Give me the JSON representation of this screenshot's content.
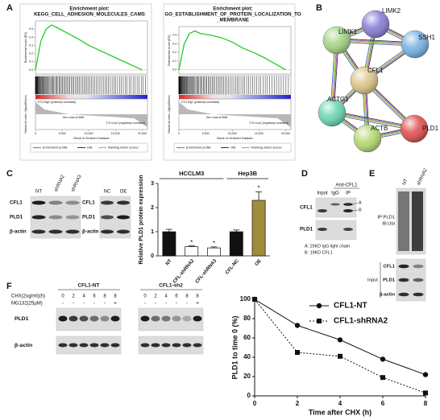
{
  "panel_labels": [
    "A",
    "B",
    "C",
    "D",
    "E",
    "F"
  ],
  "chart_data": [
    {
      "type": "gsea",
      "title": [
        "Enrichment plot:",
        "KEGG_CELL_ADHESION_MOLECULES_CAMS"
      ],
      "ylabel": "Enrichment score (ES)",
      "ylabel2": "Ranked list metric (Signal2Noise)",
      "xlabel": "Rank in Ordered Dataset",
      "high_label": "'CTL1High' (positively correlated)",
      "zero_label": "Zero cross at 5656",
      "low_label": "'CTL1Low' (negatively correlated)",
      "hits_label": "Hits",
      "metric_label": "Ranking metric scores",
      "x": [
        0,
        1000,
        2000,
        3000,
        4000,
        6000,
        8000,
        10000,
        12000,
        14000,
        16000,
        18000,
        20000
      ],
      "series": [
        {
          "name": "Enrichment profile",
          "color": "#22cc22",
          "values": [
            0,
            0.35,
            0.5,
            0.55,
            0.52,
            0.45,
            0.38,
            0.3,
            0.24,
            0.18,
            0.12,
            0.06,
            0
          ]
        }
      ],
      "xlim": [
        0,
        21000
      ],
      "xticks": [
        0,
        {
          "value": 5000,
          "label": "5,000"
        },
        {
          "value": 10000,
          "label": "10,000"
        },
        {
          "value": 15000,
          "label": "15,000"
        },
        {
          "value": 20000,
          "label": "20,000"
        }
      ],
      "ylim": [
        -0.05,
        0.6
      ],
      "yticks": [
        {
          "value": 0,
          "label": "0.0"
        },
        {
          "value": 0.1,
          "label": "0.1"
        },
        {
          "value": 0.2,
          "label": "0.2"
        },
        {
          "value": 0.3,
          "label": "0.3"
        },
        {
          "value": 0.4,
          "label": "0.4"
        },
        {
          "value": 0.5,
          "label": "0.5"
        }
      ]
    },
    {
      "type": "gsea",
      "title": [
        "Enrichment plot:",
        "GO_ESTABLISHMENT_OF_PROTEIN_LOCALIZATION_TO",
        "_MEMBRANE"
      ],
      "ylabel": "Enrichment score (ES)",
      "ylabel2": "Ranked list metric (Signal2Noise)",
      "xlabel": "Rank in Ordered Dataset",
      "high_label": "'CTL1High' (positively correlated)",
      "zero_label": "Zero cross at 5656",
      "low_label": "'CTL1Low' (negatively correlated)",
      "hits_label": "Hits",
      "metric_label": "Ranking metric scores",
      "x": [
        0,
        1000,
        2000,
        3000,
        4000,
        6000,
        8000,
        10000,
        12000,
        14000,
        16000,
        18000,
        20000
      ],
      "series": [
        {
          "name": "Enrichment profile",
          "color": "#22cc22",
          "values": [
            0,
            0.3,
            0.42,
            0.45,
            0.42,
            0.4,
            0.37,
            0.32,
            0.25,
            0.2,
            0.14,
            0.07,
            0
          ]
        }
      ],
      "xlim": [
        0,
        21000
      ],
      "xticks": [
        0,
        {
          "value": 5000,
          "label": "5,000"
        },
        {
          "value": 10000,
          "label": "10,000"
        },
        {
          "value": 15000,
          "label": "15,000"
        },
        {
          "value": 20000,
          "label": "20,000"
        }
      ],
      "ylim": [
        -0.05,
        0.5
      ],
      "yticks": [
        {
          "value": 0,
          "label": "0.0"
        },
        {
          "value": 0.1,
          "label": "0.1"
        },
        {
          "value": 0.2,
          "label": "0.2"
        },
        {
          "value": 0.3,
          "label": "0.3"
        },
        {
          "value": 0.4,
          "label": "0.4"
        }
      ]
    },
    {
      "type": "bar",
      "ylabel": "Relative PLD1 protein expression",
      "categories": [
        "NT",
        "CFL-shRNA2",
        "CFL-shRNA3",
        "CFL-NC",
        "OE"
      ],
      "values": [
        1.0,
        0.38,
        0.33,
        1.0,
        2.3
      ],
      "errors": [
        0.1,
        0.03,
        0.04,
        0.07,
        0.35
      ],
      "colors": [
        "#111111",
        "#ffffff",
        "#ffffff",
        "#111111",
        "#a08c3c"
      ],
      "significance": [
        null,
        "*",
        "*",
        null,
        "*"
      ],
      "groups": [
        "HCCLM3",
        "Hep3B"
      ],
      "ylim": [
        0,
        3
      ],
      "yticks": [
        0,
        1,
        2,
        3
      ]
    },
    {
      "type": "line",
      "xlabel": "Time after CHX (h)",
      "ylabel": "PLD1 to time 0 (%)",
      "x": [
        0,
        2,
        4,
        6,
        8
      ],
      "series": [
        {
          "name": "CFL1-NT",
          "color": "#111111",
          "marker": "circle",
          "dashed": false,
          "values": [
            100,
            73,
            58,
            38,
            22
          ]
        },
        {
          "name": "CFL1-shRNA2",
          "color": "#111111",
          "marker": "square",
          "dashed": true,
          "values": [
            100,
            45,
            41,
            19,
            3
          ]
        }
      ],
      "xlim": [
        0,
        8
      ],
      "xticks": [
        0,
        2,
        4,
        6,
        8
      ],
      "ylim": [
        0,
        100
      ],
      "yticks": [
        0,
        20,
        40,
        60,
        80,
        100
      ]
    }
  ],
  "network": {
    "nodes": [
      "LIMK2",
      "LIMK1",
      "SSH1",
      "CFL1",
      "ACTG1",
      "ACTB",
      "PLD1"
    ],
    "colors": [
      "#8a7fd6",
      "#a6d488",
      "#7ab2e4",
      "#dcc68c",
      "#6cd6b4",
      "#b6da72",
      "#e05252"
    ]
  },
  "blot_c": {
    "lanes_1": [
      "NT",
      "shRNA2",
      "shRNA3"
    ],
    "lanes_2": [
      "NC",
      "OE"
    ],
    "rows": [
      "CFL1",
      "PLD1",
      "β-actin"
    ]
  },
  "blot_d": {
    "header": "Anti-CFL1",
    "lanes": [
      "Input",
      "IgG",
      "IP"
    ],
    "rows": [
      "CFL1",
      "PLD1"
    ],
    "band_marks": [
      "A",
      "B"
    ],
    "notes": [
      "A: 25KD IgG light chain",
      "B: 19KD CFL1"
    ]
  },
  "blot_e": {
    "lanes": [
      "NT",
      "shRNA2"
    ],
    "ip_rows": [
      "IP:PLD1",
      "IB:Ubi"
    ],
    "input_label": "Input",
    "input_rows": [
      "CFL1",
      "PLD1",
      "β-actin"
    ]
  },
  "blot_f": {
    "groups": [
      "CFL1-NT",
      "CFL1-sh2"
    ],
    "chx_label": "CHX(2ug/ml)(h)",
    "times": [
      "0",
      "2",
      "4",
      "6",
      "8",
      "8"
    ],
    "mg132_label": "MG132(25μM)",
    "mg132": [
      "-",
      "-",
      "-",
      "-",
      "-",
      "+"
    ],
    "rows": [
      "PLD1",
      "β-actin"
    ]
  }
}
